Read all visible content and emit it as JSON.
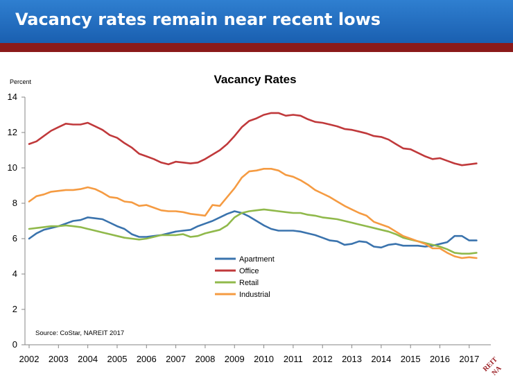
{
  "slide": {
    "title": "Vacancy rates remain near recent lows"
  },
  "chart_data": {
    "type": "line",
    "title": "Vacancy Rates",
    "ylabel": "Percent",
    "xlabel": "",
    "ylim": [
      0,
      14
    ],
    "y_ticks": [
      0,
      2,
      4,
      6,
      8,
      10,
      12,
      14
    ],
    "x_range": [
      2002,
      2017.5
    ],
    "x_ticks": [
      2002,
      2003,
      2004,
      2005,
      2006,
      2007,
      2008,
      2009,
      2010,
      2011,
      2012,
      2013,
      2014,
      2015,
      2016,
      2017
    ],
    "x_tick_labels": [
      "2002",
      "2003",
      "2004",
      "2005",
      "2006",
      "2007",
      "2008",
      "2009",
      "2010",
      "2011",
      "2012",
      "2013",
      "2014",
      "2015",
      "2016",
      "2017"
    ],
    "grid": false,
    "legend_position": "center",
    "source": "Source: CoStar, NAREIT 2017",
    "series": [
      {
        "name": "Apartment",
        "color": "#3a73ad",
        "x": [
          2002.0,
          2002.25,
          2002.5,
          2002.75,
          2003.0,
          2003.25,
          2003.5,
          2003.75,
          2004.0,
          2004.25,
          2004.5,
          2004.75,
          2005.0,
          2005.25,
          2005.5,
          2005.75,
          2006.0,
          2006.25,
          2006.5,
          2006.75,
          2007.0,
          2007.25,
          2007.5,
          2007.75,
          2008.0,
          2008.25,
          2008.5,
          2008.75,
          2009.0,
          2009.25,
          2009.5,
          2009.75,
          2010.0,
          2010.25,
          2010.5,
          2010.75,
          2011.0,
          2011.25,
          2011.5,
          2011.75,
          2012.0,
          2012.25,
          2012.5,
          2012.75,
          2013.0,
          2013.25,
          2013.5,
          2013.75,
          2014.0,
          2014.25,
          2014.5,
          2014.75,
          2015.0,
          2015.25,
          2015.5,
          2015.75,
          2016.0,
          2016.25,
          2016.5,
          2016.75,
          2017.0,
          2017.25
        ],
        "values": [
          6.0,
          6.3,
          6.5,
          6.6,
          6.7,
          6.85,
          7.0,
          7.05,
          7.2,
          7.15,
          7.1,
          6.9,
          6.7,
          6.55,
          6.25,
          6.1,
          6.1,
          6.15,
          6.2,
          6.3,
          6.4,
          6.45,
          6.5,
          6.7,
          6.85,
          7.0,
          7.2,
          7.4,
          7.55,
          7.45,
          7.25,
          7.0,
          6.75,
          6.55,
          6.45,
          6.45,
          6.45,
          6.4,
          6.3,
          6.2,
          6.05,
          5.9,
          5.85,
          5.65,
          5.7,
          5.85,
          5.8,
          5.55,
          5.5,
          5.65,
          5.7,
          5.6,
          5.6,
          5.6,
          5.55,
          5.6,
          5.7,
          5.8,
          6.15,
          6.15,
          5.9,
          5.9
        ]
      },
      {
        "name": "Office",
        "color": "#c0393b",
        "x": [
          2002.0,
          2002.25,
          2002.5,
          2002.75,
          2003.0,
          2003.25,
          2003.5,
          2003.75,
          2004.0,
          2004.25,
          2004.5,
          2004.75,
          2005.0,
          2005.25,
          2005.5,
          2005.75,
          2006.0,
          2006.25,
          2006.5,
          2006.75,
          2007.0,
          2007.25,
          2007.5,
          2007.75,
          2008.0,
          2008.25,
          2008.5,
          2008.75,
          2009.0,
          2009.25,
          2009.5,
          2009.75,
          2010.0,
          2010.25,
          2010.5,
          2010.75,
          2011.0,
          2011.25,
          2011.5,
          2011.75,
          2012.0,
          2012.25,
          2012.5,
          2012.75,
          2013.0,
          2013.25,
          2013.5,
          2013.75,
          2014.0,
          2014.25,
          2014.5,
          2014.75,
          2015.0,
          2015.25,
          2015.5,
          2015.75,
          2016.0,
          2016.25,
          2016.5,
          2016.75,
          2017.0,
          2017.25
        ],
        "values": [
          11.35,
          11.5,
          11.8,
          12.1,
          12.3,
          12.5,
          12.45,
          12.45,
          12.55,
          12.35,
          12.15,
          11.85,
          11.7,
          11.4,
          11.15,
          10.8,
          10.65,
          10.5,
          10.3,
          10.2,
          10.35,
          10.3,
          10.25,
          10.3,
          10.5,
          10.75,
          11.0,
          11.35,
          11.8,
          12.3,
          12.65,
          12.8,
          13.0,
          13.1,
          13.1,
          12.95,
          13.0,
          12.95,
          12.75,
          12.6,
          12.55,
          12.45,
          12.35,
          12.2,
          12.15,
          12.05,
          11.95,
          11.8,
          11.75,
          11.6,
          11.35,
          11.1,
          11.05,
          10.85,
          10.65,
          10.5,
          10.55,
          10.4,
          10.25,
          10.15,
          10.2,
          10.25
        ]
      },
      {
        "name": "Retail",
        "color": "#90b94b",
        "x": [
          2002.0,
          2002.25,
          2002.5,
          2002.75,
          2003.0,
          2003.25,
          2003.5,
          2003.75,
          2004.0,
          2004.25,
          2004.5,
          2004.75,
          2005.0,
          2005.25,
          2005.5,
          2005.75,
          2006.0,
          2006.25,
          2006.5,
          2006.75,
          2007.0,
          2007.25,
          2007.5,
          2007.75,
          2008.0,
          2008.25,
          2008.5,
          2008.75,
          2009.0,
          2009.25,
          2009.5,
          2009.75,
          2010.0,
          2010.25,
          2010.5,
          2010.75,
          2011.0,
          2011.25,
          2011.5,
          2011.75,
          2012.0,
          2012.25,
          2012.5,
          2012.75,
          2013.0,
          2013.25,
          2013.5,
          2013.75,
          2014.0,
          2014.25,
          2014.5,
          2014.75,
          2015.0,
          2015.25,
          2015.5,
          2015.75,
          2016.0,
          2016.25,
          2016.5,
          2016.75,
          2017.0,
          2017.25
        ],
        "values": [
          6.55,
          6.6,
          6.65,
          6.7,
          6.7,
          6.75,
          6.7,
          6.65,
          6.55,
          6.45,
          6.35,
          6.25,
          6.15,
          6.05,
          6.0,
          5.95,
          6.0,
          6.1,
          6.2,
          6.2,
          6.2,
          6.25,
          6.1,
          6.15,
          6.3,
          6.4,
          6.5,
          6.75,
          7.2,
          7.45,
          7.55,
          7.6,
          7.65,
          7.6,
          7.55,
          7.5,
          7.45,
          7.45,
          7.35,
          7.3,
          7.2,
          7.15,
          7.1,
          7.0,
          6.9,
          6.8,
          6.7,
          6.6,
          6.5,
          6.4,
          6.25,
          6.05,
          5.95,
          5.85,
          5.75,
          5.65,
          5.55,
          5.4,
          5.2,
          5.15,
          5.15,
          5.2
        ]
      },
      {
        "name": "Industrial",
        "color": "#f59b42",
        "x": [
          2002.0,
          2002.25,
          2002.5,
          2002.75,
          2003.0,
          2003.25,
          2003.5,
          2003.75,
          2004.0,
          2004.25,
          2004.5,
          2004.75,
          2005.0,
          2005.25,
          2005.5,
          2005.75,
          2006.0,
          2006.25,
          2006.5,
          2006.75,
          2007.0,
          2007.25,
          2007.5,
          2007.75,
          2008.0,
          2008.25,
          2008.5,
          2008.75,
          2009.0,
          2009.25,
          2009.5,
          2009.75,
          2010.0,
          2010.25,
          2010.5,
          2010.75,
          2011.0,
          2011.25,
          2011.5,
          2011.75,
          2012.0,
          2012.25,
          2012.5,
          2012.75,
          2013.0,
          2013.25,
          2013.5,
          2013.75,
          2014.0,
          2014.25,
          2014.5,
          2014.75,
          2015.0,
          2015.25,
          2015.5,
          2015.75,
          2016.0,
          2016.25,
          2016.5,
          2016.75,
          2017.0,
          2017.25
        ],
        "values": [
          8.1,
          8.4,
          8.5,
          8.65,
          8.7,
          8.75,
          8.75,
          8.8,
          8.9,
          8.8,
          8.6,
          8.35,
          8.3,
          8.1,
          8.05,
          7.85,
          7.9,
          7.75,
          7.6,
          7.55,
          7.55,
          7.5,
          7.4,
          7.35,
          7.3,
          7.9,
          7.85,
          8.35,
          8.85,
          9.45,
          9.8,
          9.85,
          9.95,
          9.95,
          9.85,
          9.6,
          9.5,
          9.3,
          9.05,
          8.75,
          8.55,
          8.35,
          8.1,
          7.85,
          7.65,
          7.45,
          7.3,
          6.95,
          6.8,
          6.65,
          6.4,
          6.15,
          6.0,
          5.85,
          5.7,
          5.45,
          5.45,
          5.2,
          5.0,
          4.9,
          4.95,
          4.9
        ]
      }
    ]
  }
}
